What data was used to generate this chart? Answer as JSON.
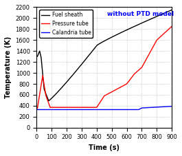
{
  "title": "without PTD model",
  "xlabel": "Time (s)",
  "ylabel": "Temperature (K)",
  "xlim": [
    0,
    900
  ],
  "ylim": [
    0,
    2200
  ],
  "xticks": [
    0,
    100,
    200,
    300,
    400,
    500,
    600,
    700,
    800,
    900
  ],
  "yticks": [
    0,
    200,
    400,
    600,
    800,
    1000,
    1200,
    1400,
    1600,
    1800,
    2000,
    2200
  ],
  "legend": [
    "Fuel sheath",
    "Pressure tube",
    "Calandria tube"
  ],
  "legend_colors": [
    "black",
    "red",
    "blue"
  ],
  "background_color": "#ffffff",
  "grid_color": "#aaaaaa"
}
